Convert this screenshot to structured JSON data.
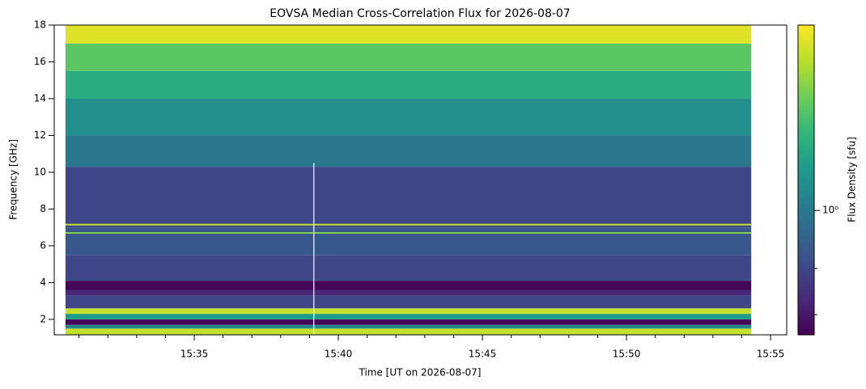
{
  "chart_data": {
    "type": "heatmap",
    "title": "EOVSA Median Cross-Correlation Flux for 2026-08-07",
    "x_label": "Time [UT on 2026-08-07]",
    "y_label": "Frequency [GHz]",
    "colorbar_label": "Flux Density [sfu]",
    "xlim": [
      30.14,
      55.56
    ],
    "xticks": [
      {
        "value": 35,
        "label": "15:35"
      },
      {
        "value": 40,
        "label": "15:40"
      },
      {
        "value": 45,
        "label": "15:45"
      },
      {
        "value": 50,
        "label": "15:50"
      },
      {
        "value": 55,
        "label": "15:55"
      }
    ],
    "xminor": [
      31,
      32,
      33,
      34,
      36,
      37,
      38,
      39,
      41,
      42,
      43,
      44,
      46,
      47,
      48,
      49,
      51,
      52,
      53,
      54
    ],
    "ylim": [
      1.16,
      18
    ],
    "yticks": [
      2,
      4,
      6,
      8,
      10,
      12,
      14,
      16,
      18
    ],
    "time_range": [
      30.53,
      54.33
    ],
    "bands": {
      "edges": [
        1.16,
        1.5,
        1.7,
        2.0,
        2.3,
        2.6,
        3.3,
        3.6,
        4.1,
        5.5,
        7.0,
        10.3,
        12,
        14,
        15.5,
        17,
        18
      ],
      "values": [
        4,
        1.2,
        0.35,
        1.5,
        4,
        0.6,
        0.45,
        0.35,
        0.6,
        0.7,
        0.6,
        1.0,
        1.3,
        1.8,
        2.5,
        4.5
      ]
    },
    "hlines": [
      {
        "y": 7.15,
        "value": 4
      },
      {
        "y": 6.7,
        "value": 3
      }
    ],
    "vline": {
      "x": 39.15,
      "ylim": [
        1.16,
        10.5
      ]
    },
    "clim": [
      0.335,
      5.1
    ],
    "log_color": true,
    "cticks": [
      {
        "value": 1,
        "label": "10⁰"
      }
    ],
    "cminor": [
      0.4,
      0.6
    ]
  }
}
